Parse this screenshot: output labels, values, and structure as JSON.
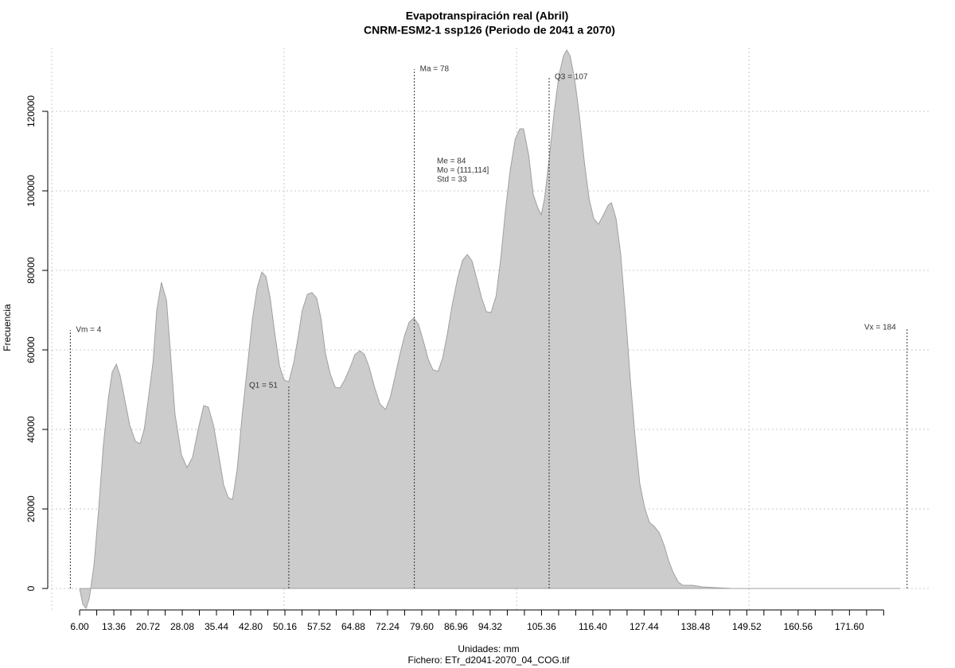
{
  "chart_data": {
    "type": "area",
    "title": "Evapotranspiración real (Abril)",
    "subtitle": "CNRM-ESM2-1 ssp126 (Periodo de 2041 a 2070)",
    "xlabel": "Unidades: mm",
    "footer": "Fichero: ETr_d2041-2070_04_COG.tif",
    "ylabel": "Frecuencia",
    "color": "#cccccc",
    "line_color": "#a0a0a0",
    "xlim": [
      0,
      189
    ],
    "ylim": [
      -6000,
      136000
    ],
    "xticks": [
      {
        "value": 6,
        "label": "6.00"
      },
      13.36,
      20.72,
      28.08,
      35.44,
      {
        "value": 42.8,
        "label": "42.80"
      },
      50.16,
      57.52,
      64.88,
      72.24,
      {
        "value": 79.6,
        "label": "79.60"
      },
      86.96,
      94.32,
      105.36,
      {
        "value": 116.4,
        "label": "116.40"
      },
      127.44,
      138.48,
      149.52,
      160.56,
      {
        "value": 171.6,
        "label": "171.60"
      }
    ],
    "xminor_ticks": [
      9.68,
      17.04,
      24.4,
      31.76,
      39.12,
      46.48,
      53.84,
      61.2,
      68.56,
      75.92,
      83.28,
      90.64,
      98,
      101.68,
      109.04,
      112.72,
      120.08,
      123.76,
      131.12,
      134.8,
      142.16,
      145.84,
      153.2,
      156.88,
      164.24,
      167.92,
      175.28,
      178.96
    ],
    "xgrid": [
      0,
      50,
      100,
      150
    ],
    "yticks": [
      0,
      20000,
      40000,
      60000,
      80000,
      100000,
      120000
    ],
    "grid": true,
    "x": [
      6.0,
      6.7,
      7.4,
      8.1,
      9.1,
      10.1,
      11.1,
      12.2,
      13.0,
      13.9,
      14.7,
      15.8,
      16.8,
      18.0,
      19.0,
      19.9,
      20.7,
      21.8,
      22.6,
      23.6,
      24.7,
      25.5,
      26.5,
      27.9,
      29.1,
      30.3,
      31.5,
      32.7,
      33.7,
      34.8,
      36.0,
      37.0,
      38.0,
      38.9,
      39.9,
      41.0,
      42.2,
      43.2,
      44.2,
      45.2,
      46.1,
      47.0,
      48.0,
      49.0,
      50.0,
      51.0,
      52.1,
      53.1,
      53.9,
      55.0,
      56.0,
      57.0,
      57.9,
      58.9,
      59.9,
      61.0,
      62.0,
      63.0,
      64.2,
      65.2,
      66.3,
      67.3,
      68.3,
      69.4,
      70.6,
      71.8,
      72.8,
      73.8,
      74.8,
      75.9,
      76.9,
      77.9,
      78.9,
      80.0,
      81.0,
      82.0,
      83.1,
      84.1,
      85.1,
      86.1,
      87.3,
      88.4,
      89.4,
      90.4,
      91.4,
      92.5,
      93.5,
      94.5,
      95.6,
      96.6,
      97.6,
      98.6,
      99.7,
      100.7,
      101.5,
      102.6,
      103.6,
      104.6,
      105.3,
      106.0,
      107.0,
      108.1,
      109.1,
      110.1,
      110.8,
      111.5,
      112.5,
      113.5,
      114.6,
      115.6,
      116.6,
      117.6,
      118.7,
      119.7,
      120.4,
      121.4,
      122.4,
      123.5,
      124.5,
      125.5,
      126.5,
      127.6,
      128.6,
      129.6,
      130.7,
      131.7,
      132.7,
      133.7,
      134.8,
      135.8,
      136.8,
      137.8,
      138.9,
      139.9,
      143.0,
      146.4,
      182.4
    ],
    "values": [
      0,
      -4000,
      -5000,
      -2400,
      6000,
      20000,
      36000,
      48000,
      54400,
      56400,
      53600,
      47000,
      41000,
      37000,
      36400,
      40000,
      47000,
      57000,
      70000,
      77000,
      72400,
      60000,
      44000,
      33600,
      30400,
      33000,
      40000,
      46000,
      45600,
      41000,
      33000,
      26000,
      22800,
      22400,
      30000,
      44000,
      57000,
      68000,
      75600,
      79600,
      78400,
      73000,
      64000,
      56000,
      52400,
      52000,
      57000,
      64000,
      70000,
      74000,
      74400,
      73000,
      68000,
      59000,
      54000,
      50600,
      50400,
      52400,
      55600,
      58800,
      59800,
      58800,
      55600,
      50800,
      46400,
      45000,
      48000,
      53000,
      58400,
      63600,
      67000,
      68000,
      66400,
      62000,
      57600,
      55000,
      54600,
      58000,
      64000,
      71000,
      78000,
      82600,
      84000,
      82400,
      78000,
      73000,
      69600,
      69400,
      73600,
      83000,
      95000,
      105000,
      113000,
      115600,
      115600,
      109000,
      99000,
      95600,
      94000,
      98000,
      108000,
      120000,
      129000,
      134000,
      135400,
      134000,
      128000,
      119000,
      107000,
      98000,
      93000,
      91600,
      94000,
      96400,
      97000,
      93000,
      84000,
      68000,
      52000,
      38000,
      26400,
      20000,
      16600,
      15600,
      14000,
      11000,
      7000,
      4000,
      1600,
      800,
      800,
      800,
      600,
      400,
      200,
      0,
      0
    ],
    "vlines": [
      {
        "label": "Vm = 4",
        "x": 4,
        "top": 65000
      },
      {
        "label": "Q1 = 51",
        "x": 51,
        "top": 51000
      },
      {
        "label": "Ma = 78",
        "x": 78,
        "top": 130600
      },
      {
        "label": "Q3 = 107",
        "x": 107,
        "top": 128600
      },
      {
        "label": "Vx = 184",
        "x": 184,
        "top": 65600
      }
    ],
    "stats": [
      "Me = 84",
      "Mo = (111,114]",
      "Std = 33"
    ]
  }
}
